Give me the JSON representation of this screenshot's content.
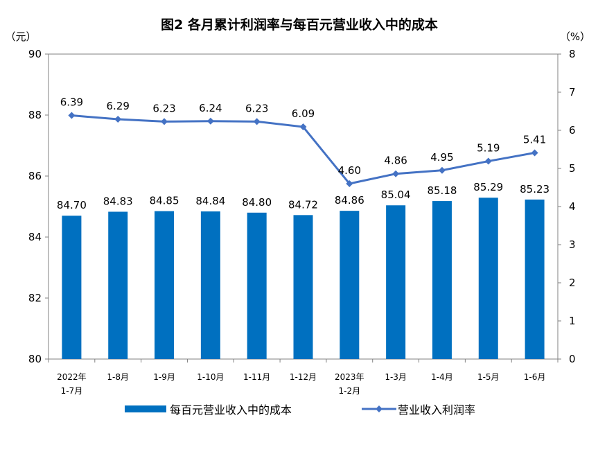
{
  "chart_data": {
    "type": "bar+line",
    "title": "图2  各月累计利润率与每百元营业收入中的成本",
    "left_unit": "（元）",
    "right_unit": "（%）",
    "categories": [
      [
        "2022年",
        "1-7月"
      ],
      [
        "1-8月"
      ],
      [
        "1-9月"
      ],
      [
        "1-10月"
      ],
      [
        "1-11月"
      ],
      [
        "1-12月"
      ],
      [
        "2023年",
        "1-2月"
      ],
      [
        "1-3月"
      ],
      [
        "1-4月"
      ],
      [
        "1-5月"
      ],
      [
        "1-6月"
      ]
    ],
    "left_axis": {
      "min": 80,
      "max": 90,
      "step": 2,
      "ticks": [
        "80",
        "82",
        "84",
        "86",
        "88",
        "90"
      ]
    },
    "right_axis": {
      "min": 0,
      "max": 8,
      "step": 1,
      "ticks": [
        "0",
        "1",
        "2",
        "3",
        "4",
        "5",
        "6",
        "7",
        "8"
      ]
    },
    "series": [
      {
        "name": "每百元营业收入中的成本",
        "type": "bar",
        "axis": "left",
        "color": "#0070C0",
        "values": [
          84.7,
          84.83,
          84.85,
          84.84,
          84.8,
          84.72,
          84.86,
          85.04,
          85.18,
          85.29,
          85.23
        ],
        "labels": [
          "84.70",
          "84.83",
          "84.85",
          "84.84",
          "84.80",
          "84.72",
          "84.86",
          "85.04",
          "85.18",
          "85.29",
          "85.23"
        ]
      },
      {
        "name": "营业收入利润率",
        "type": "line",
        "axis": "right",
        "color": "#4472C4",
        "values": [
          6.39,
          6.29,
          6.23,
          6.24,
          6.23,
          6.09,
          4.6,
          4.86,
          4.95,
          5.19,
          5.41
        ],
        "labels": [
          "6.39",
          "6.29",
          "6.23",
          "6.24",
          "6.23",
          "6.09",
          "4.60",
          "4.86",
          "4.95",
          "5.19",
          "5.41"
        ]
      }
    ],
    "legend_position": "bottom",
    "grid": false
  }
}
